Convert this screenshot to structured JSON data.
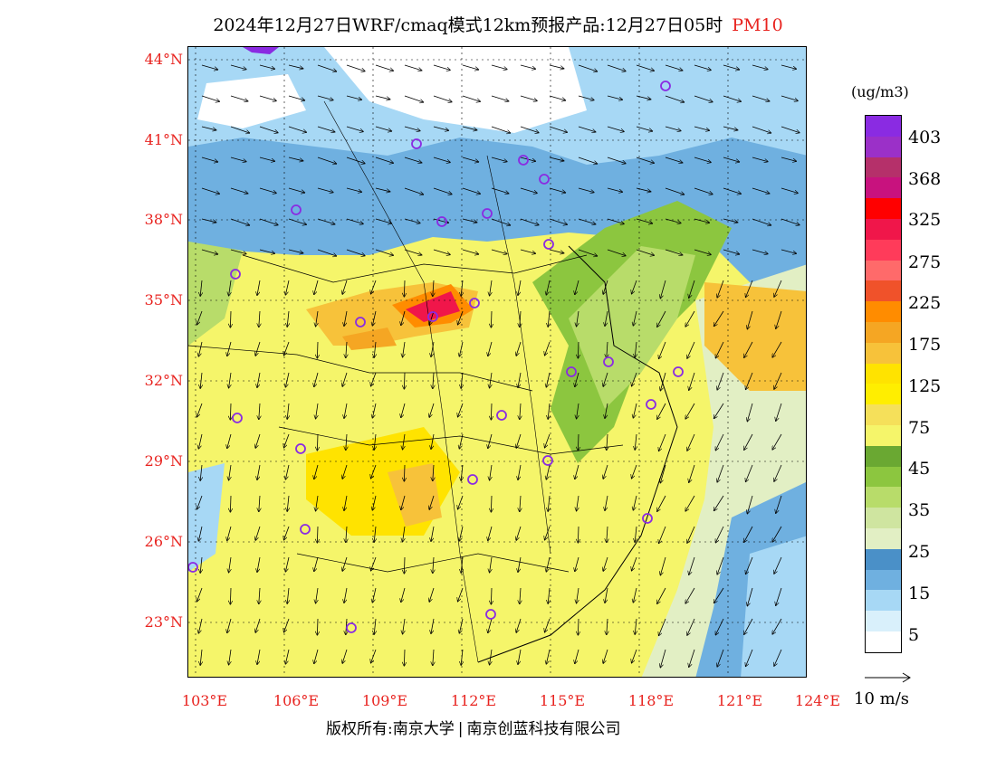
{
  "header": {
    "title": "2024年12月27日WRF/cmaq模式12km预报产品:12月27日05时",
    "pollutant": "PM10"
  },
  "map": {
    "lat_labels": [
      "44°N",
      "41°N",
      "38°N",
      "35°N",
      "32°N",
      "29°N",
      "26°N",
      "23°N"
    ],
    "lon_labels": [
      "103°E",
      "106°E",
      "109°E",
      "112°E",
      "115°E",
      "118°E",
      "121°E",
      "124°E"
    ]
  },
  "legend": {
    "unit": "(ug/m3)",
    "ticks": [
      "403",
      "368",
      "325",
      "275",
      "225",
      "175",
      "125",
      "75",
      "45",
      "35",
      "25",
      "15",
      "5"
    ],
    "colors": [
      "#8a2be2",
      "#9b30c8",
      "#b5306a",
      "#c8127e",
      "#ff0000",
      "#f0164a",
      "#ff3b5a",
      "#ff6a6a",
      "#f0522a",
      "#ff8c00",
      "#f5a623",
      "#f7c23a",
      "#ffe300",
      "#ffee00",
      "#f5e05a",
      "#f5f56a",
      "#6aa832",
      "#8cc63f",
      "#b8dc6a",
      "#cfe5a0",
      "#e2efc4",
      "#4a90c8",
      "#6fb0e0",
      "#a7d8f5",
      "#d9f0fb",
      "#ffffff"
    ]
  },
  "wind_reference": {
    "label": "10 m/s"
  },
  "footer": {
    "copyright": "版权所有:南京大学",
    "company": "南京创蓝科技有限公司"
  }
}
